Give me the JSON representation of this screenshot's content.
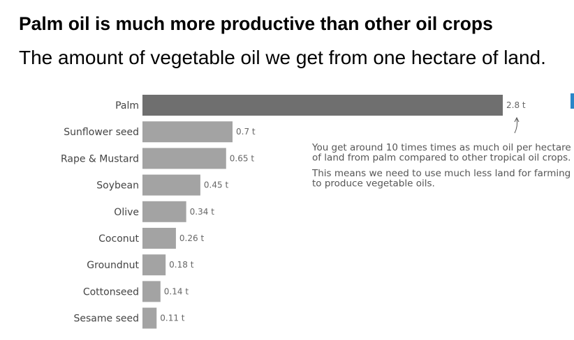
{
  "title": "Palm oil is much more productive than other oil crops",
  "subtitle": "The amount of vegetable oil we get from one hectare of land.",
  "colors": {
    "highlight_bar": "#6f6f6f",
    "bar": "#a3a3a3",
    "label": "#444444",
    "value": "#666666",
    "annotation": "#555555",
    "edge_marker": "#2a86c8"
  },
  "chart_data": {
    "type": "bar",
    "orientation": "horizontal",
    "categories": [
      "Palm",
      "Sunflower seed",
      "Rape & Mustard",
      "Soybean",
      "Olive",
      "Coconut",
      "Groundnut",
      "Cottonseed",
      "Sesame seed"
    ],
    "values": [
      2.8,
      0.7,
      0.65,
      0.45,
      0.34,
      0.26,
      0.18,
      0.14,
      0.11
    ],
    "value_labels": [
      "2.8 t",
      "0.7 t",
      "0.65 t",
      "0.45 t",
      "0.34 t",
      "0.26 t",
      "0.18 t",
      "0.14 t",
      "0.11 t"
    ],
    "highlighted": "Palm",
    "xlim": [
      0,
      2.8
    ],
    "grid": false,
    "annotation": {
      "lines": [
        "You get around 10 times times as much oil per hectare",
        "of land from palm compared to other tropical oil crops.",
        "",
        "This means we need to use much less land for farming",
        "to produce vegetable oils."
      ],
      "points_to": "Palm"
    }
  }
}
